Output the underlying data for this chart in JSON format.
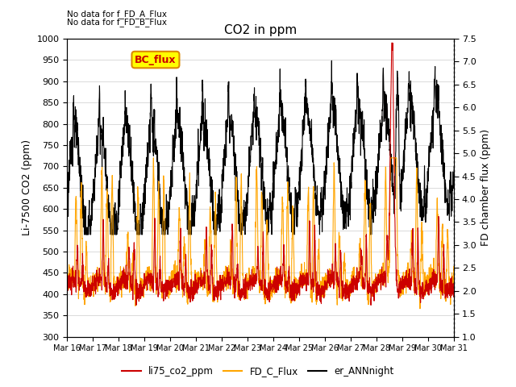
{
  "title": "CO2 in ppm",
  "text_top_left": [
    "No data for f_FD_A_Flux",
    "No data for f_FD_B_Flux"
  ],
  "annotation_box": "BC_flux",
  "ylabel_left": "Li-7500 CO2 (ppm)",
  "ylabel_right": "FD chamber flux (ppm)",
  "ylim_left": [
    300,
    1000
  ],
  "ylim_right": [
    1.0,
    7.5
  ],
  "yticks_left": [
    300,
    350,
    400,
    450,
    500,
    550,
    600,
    650,
    700,
    750,
    800,
    850,
    900,
    950,
    1000
  ],
  "yticks_right": [
    1.0,
    1.5,
    2.0,
    2.5,
    3.0,
    3.5,
    4.0,
    4.5,
    5.0,
    5.5,
    6.0,
    6.5,
    7.0,
    7.5
  ],
  "xtick_labels": [
    "Mar 16",
    "Mar 17",
    "Mar 18",
    "Mar 19",
    "Mar 20",
    "Mar 21",
    "Mar 22",
    "Mar 23",
    "Mar 24",
    "Mar 25",
    "Mar 26",
    "Mar 27",
    "Mar 28",
    "Mar 29",
    "Mar 30",
    "Mar 31"
  ],
  "colors": {
    "li75_co2_ppm": "#cc0000",
    "FD_C_Flux": "#ffa500",
    "er_ANNnight": "#000000"
  },
  "legend_labels": [
    "li75_co2_ppm",
    "FD_C_Flux",
    "er_ANNnight"
  ],
  "background_color": "#ffffff",
  "grid_color": "#cccccc"
}
